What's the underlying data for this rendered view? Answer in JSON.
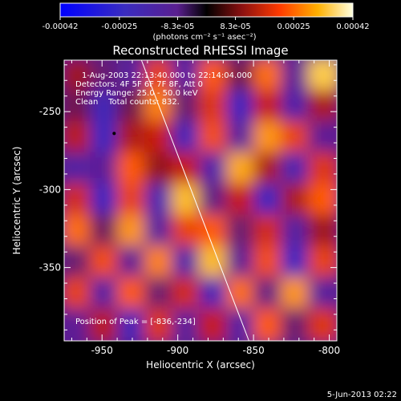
{
  "chart_data": {
    "type": "heatmap",
    "title": "Reconstructed RHESSI Image",
    "xlabel": "Heliocentric X (arcsec)",
    "ylabel": "Heliocentric Y (arcsec)",
    "xlim": [
      -975,
      -795
    ],
    "ylim": [
      -397,
      -217
    ],
    "xticks": [
      -950,
      -900,
      -850,
      -800
    ],
    "xtick_labels": [
      "-950",
      "-900",
      "-850",
      "-800"
    ],
    "yticks": [
      -250,
      -300,
      -350
    ],
    "ytick_labels": [
      "-250",
      "-300",
      "-350"
    ],
    "colorbar": {
      "min": -0.00042,
      "max": 0.00042,
      "ticks": [
        -0.00042,
        -0.00025,
        -8.3e-05,
        8.3e-05,
        0.00025,
        0.00042
      ],
      "tick_labels": [
        "-0.00042",
        "-0.00025",
        "-8.3e-05",
        "8.3e-05",
        "0.00025",
        "0.00042"
      ],
      "unit_text": "(photons cm⁻² s⁻¹ asec⁻²)"
    },
    "info_lines": [
      "1-Aug-2003 22:13:40.000 to 22:14:04.000",
      "Detectors: 4F 5F 6F 7F 8F, Att 0",
      "Energy Range: 25.0 - 50.0 keV",
      "Clean    Total counts: 832."
    ],
    "peak_text": "Position of Peak = [-836,-234]",
    "peak_position": [
      -836,
      -234
    ],
    "image_grid": {
      "rows": 9,
      "cols": 10,
      "note_values_normalized_minus1_to_1": true,
      "values": [
        [
          0.15,
          -0.2,
          -0.35,
          0.45,
          -0.4,
          0.55,
          -0.1,
          0.6,
          -0.3,
          0.85
        ],
        [
          -0.1,
          -0.55,
          -0.1,
          0.65,
          -0.2,
          0.4,
          -0.6,
          0.3,
          -0.45,
          0.2
        ],
        [
          0.25,
          -0.6,
          0.2,
          0.3,
          -0.55,
          0.5,
          -0.35,
          0.7,
          0.45,
          -0.3
        ],
        [
          -0.4,
          -0.3,
          0.55,
          0.1,
          0.3,
          -0.45,
          0.75,
          0.2,
          -0.5,
          0.4
        ],
        [
          0.35,
          -0.65,
          0.45,
          -0.5,
          0.8,
          -0.25,
          0.3,
          -0.6,
          0.2,
          0.55
        ],
        [
          0.6,
          -0.15,
          0.7,
          -0.35,
          0.45,
          0.55,
          -0.2,
          0.35,
          -0.4,
          0.15
        ],
        [
          -0.2,
          0.5,
          -0.3,
          0.65,
          -0.45,
          0.8,
          -0.3,
          0.5,
          -0.65,
          0.45
        ],
        [
          0.45,
          -0.4,
          0.55,
          -0.2,
          0.35,
          -0.55,
          0.6,
          -0.25,
          0.7,
          -0.35
        ],
        [
          -0.3,
          0.25,
          -0.55,
          0.4,
          -0.35,
          0.3,
          -0.4,
          0.55,
          -0.2,
          0.4
        ]
      ]
    },
    "limb_line": {
      "from": [
        -924,
        -217
      ],
      "to": [
        -853,
        -397
      ]
    }
  },
  "footer": {
    "date": "5-Jun-2013 02:22"
  }
}
